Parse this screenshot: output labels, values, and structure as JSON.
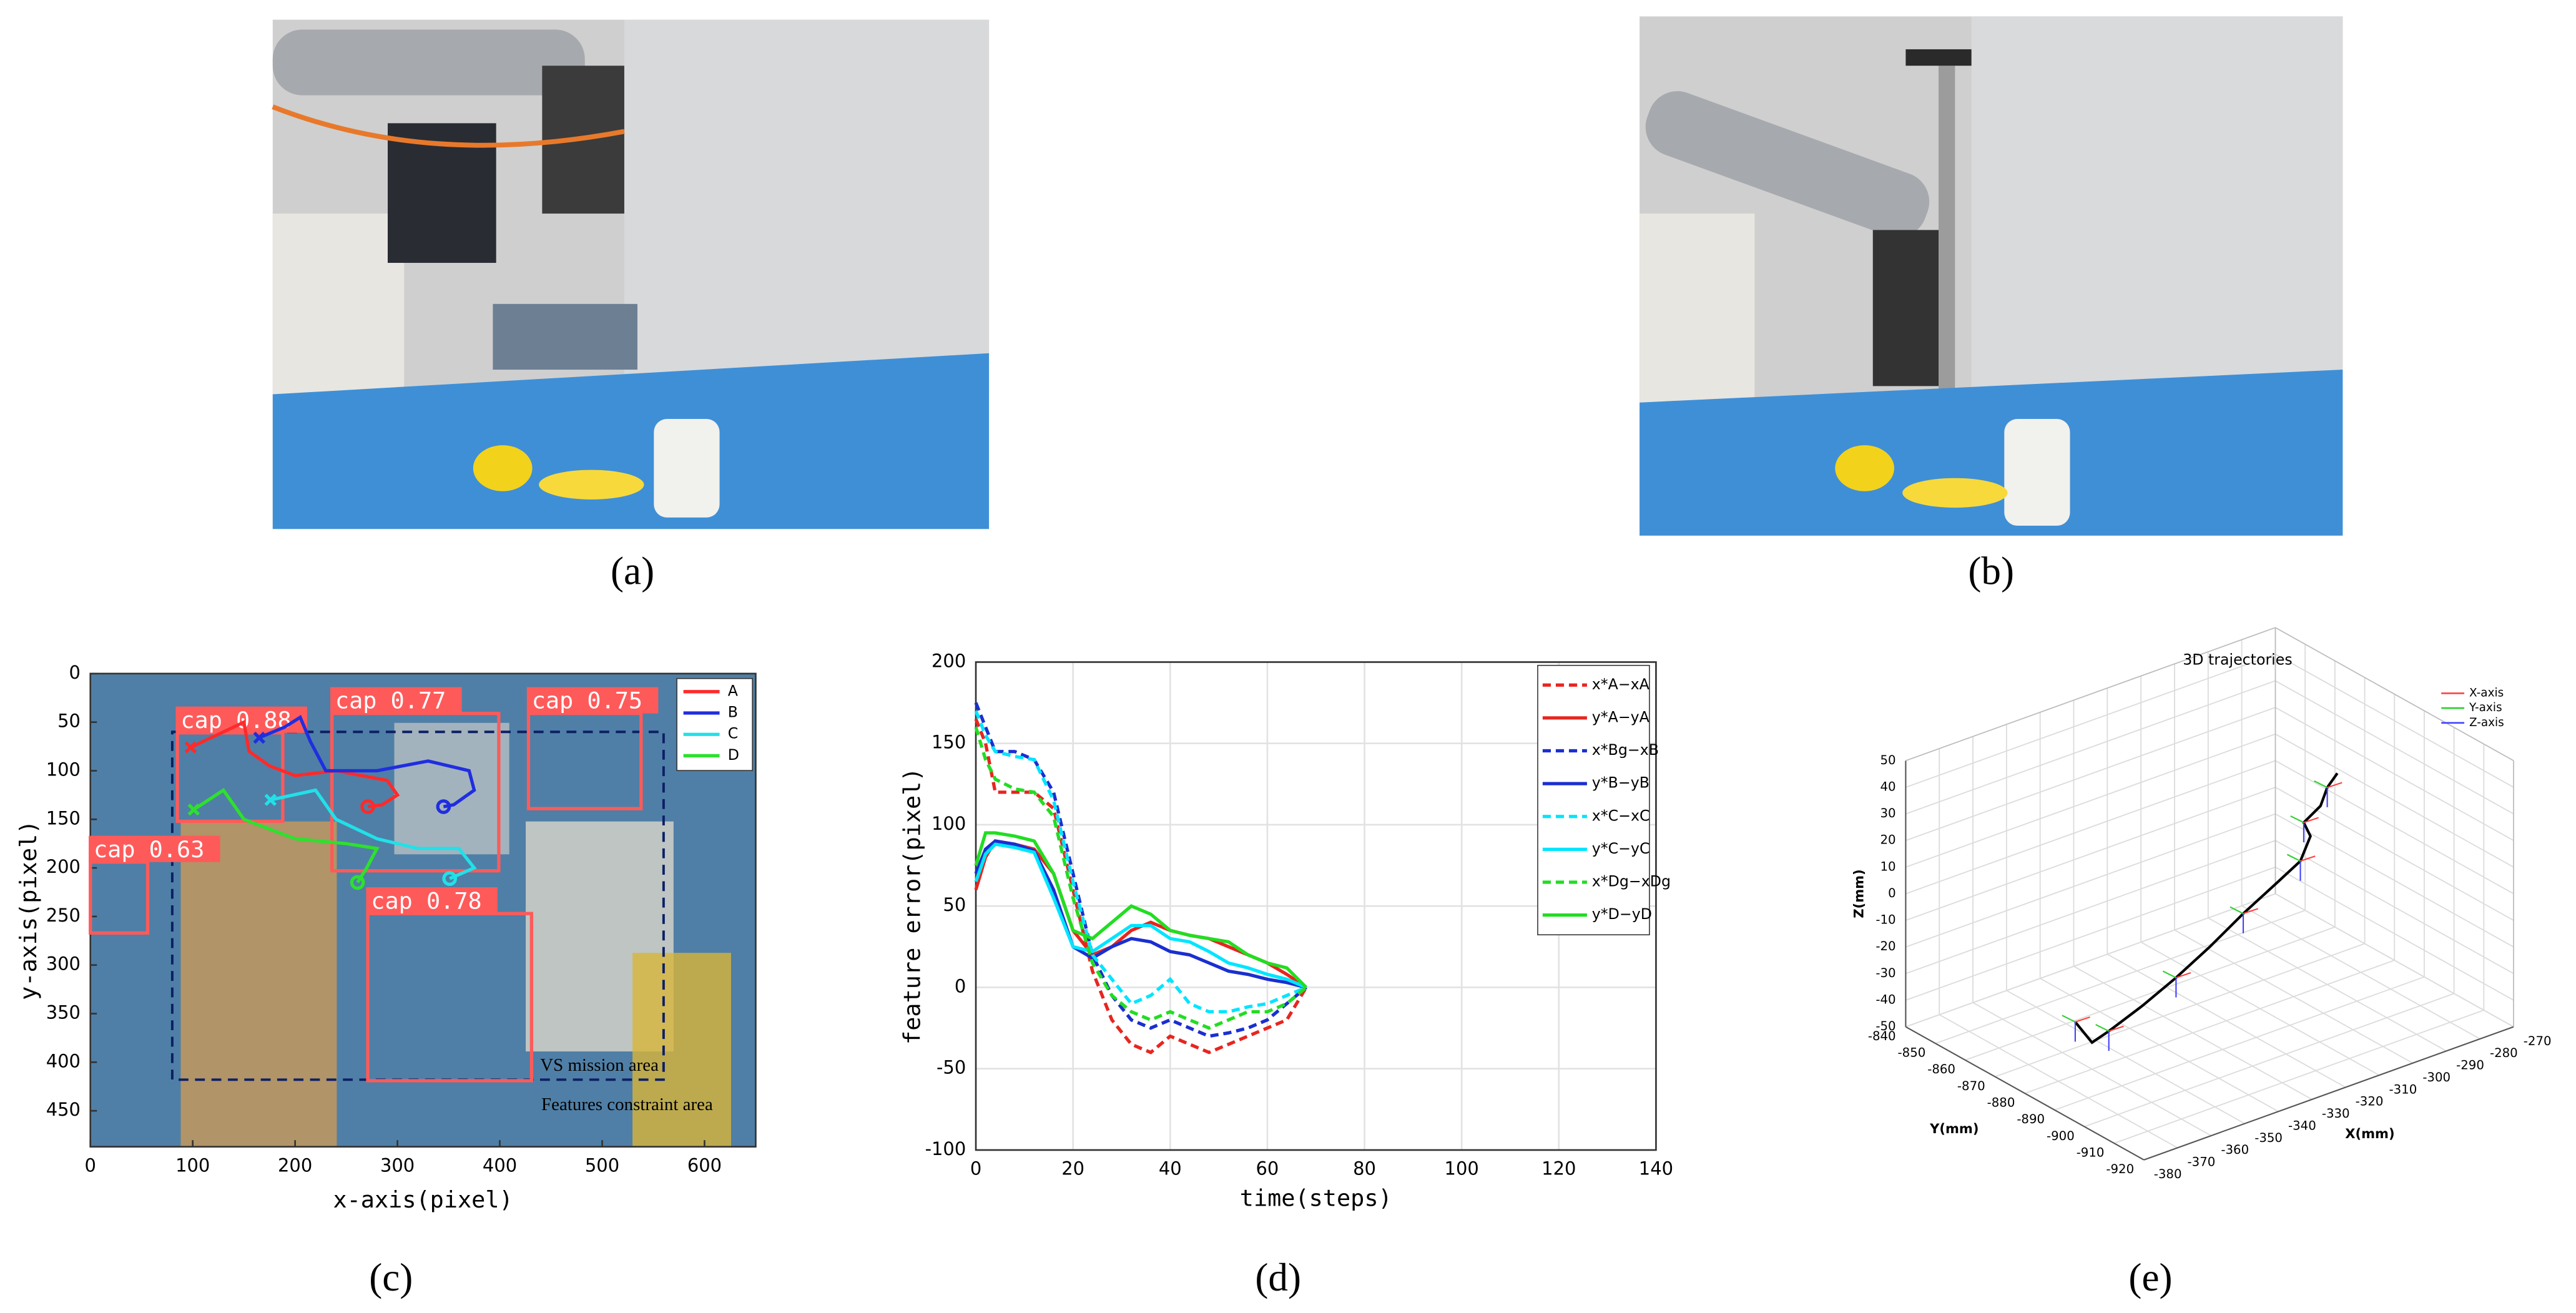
{
  "panel_labels": [
    "(a)",
    "(b)",
    "(c)",
    "(d)",
    "(e)"
  ],
  "chart_data": [
    {
      "type": "image_trajectory",
      "xlabel": "x-axis(pixel)",
      "ylabel": "y-axis(pixel)",
      "xlim": [
        0,
        650
      ],
      "ylim": [
        487,
        0
      ],
      "xticks": [
        0,
        100,
        200,
        300,
        400,
        500,
        600
      ],
      "yticks": [
        0,
        50,
        100,
        150,
        200,
        250,
        300,
        350,
        400,
        450
      ],
      "legend": "upper right",
      "series": [
        {
          "name": "A",
          "color": "#ff2a2a",
          "x": [
            98,
            130,
            150,
            155,
            175,
            200,
            240,
            290,
            300,
            285,
            271
          ],
          "y": [
            76,
            60,
            50,
            80,
            95,
            105,
            100,
            110,
            125,
            135,
            137
          ]
        },
        {
          "name": "B",
          "color": "#1f2ee0",
          "x": [
            165,
            190,
            205,
            215,
            230,
            280,
            330,
            370,
            375,
            355,
            345
          ],
          "y": [
            66,
            55,
            45,
            70,
            100,
            100,
            90,
            100,
            120,
            135,
            137
          ]
        },
        {
          "name": "C",
          "color": "#22e0e8",
          "x": [
            176,
            220,
            240,
            280,
            320,
            360,
            375,
            351
          ],
          "y": [
            130,
            120,
            150,
            170,
            180,
            180,
            200,
            211
          ]
        },
        {
          "name": "D",
          "color": "#2ee02e",
          "x": [
            101,
            130,
            150,
            200,
            250,
            280,
            270,
            261
          ],
          "y": [
            140,
            120,
            150,
            170,
            175,
            180,
            200,
            215
          ]
        }
      ],
      "detections": [
        {
          "label": "cap 0.88",
          "x": [
            85,
            188
          ],
          "y": [
            61,
            152
          ]
        },
        {
          "label": "cap 0.77",
          "x": [
            236,
            399
          ],
          "y": [
            41,
            203
          ]
        },
        {
          "label": "cap 0.75",
          "x": [
            428,
            538
          ],
          "y": [
            41,
            139
          ]
        },
        {
          "label": "cap 0.63",
          "x": [
            0,
            56
          ],
          "y": [
            194,
            267
          ]
        },
        {
          "label": "cap 0.78",
          "x": [
            271,
            431
          ],
          "y": [
            247,
            419
          ]
        }
      ],
      "mission_area": {
        "label": "VS mission area",
        "x": [
          80,
          560
        ],
        "y": [
          60,
          418
        ]
      },
      "annotation": "Features constraint area"
    },
    {
      "type": "line",
      "xlabel": "time(steps)",
      "ylabel": "feature error(pixel)",
      "x": [
        0,
        2,
        4,
        8,
        12,
        16,
        20,
        24,
        28,
        32,
        36,
        40,
        44,
        48,
        52,
        56,
        60,
        64,
        68
      ],
      "xlim": [
        0,
        140
      ],
      "ylim": [
        -100,
        200
      ],
      "xticks": [
        0,
        20,
        40,
        60,
        80,
        100,
        120,
        140
      ],
      "yticks": [
        -100,
        -50,
        0,
        50,
        100,
        150,
        200
      ],
      "grid": true,
      "legend": "upper right",
      "series": [
        {
          "name": "x*A−xA",
          "color": "#e8251f",
          "style": "dashed",
          "values": [
            165,
            150,
            120,
            120,
            120,
            110,
            60,
            10,
            -20,
            -35,
            -40,
            -30,
            -35,
            -40,
            -35,
            -30,
            -25,
            -20,
            0
          ]
        },
        {
          "name": "y*A−yA",
          "color": "#e8251f",
          "style": "solid",
          "values": [
            60,
            80,
            90,
            88,
            85,
            70,
            35,
            20,
            25,
            35,
            40,
            35,
            32,
            30,
            25,
            20,
            15,
            8,
            0
          ]
        },
        {
          "name": "x*Bg−xB",
          "color": "#1a2fd0",
          "style": "dashed",
          "values": [
            175,
            160,
            145,
            145,
            140,
            120,
            70,
            20,
            -5,
            -20,
            -25,
            -20,
            -25,
            -30,
            -28,
            -25,
            -20,
            -10,
            0
          ]
        },
        {
          "name": "y*B−yB",
          "color": "#1a2fd0",
          "style": "solid",
          "values": [
            70,
            85,
            90,
            88,
            84,
            60,
            25,
            18,
            25,
            30,
            28,
            22,
            20,
            15,
            10,
            8,
            5,
            3,
            0
          ]
        },
        {
          "name": "x*C−xC",
          "color": "#00e5ff",
          "style": "dashed",
          "values": [
            170,
            155,
            145,
            142,
            140,
            115,
            65,
            20,
            5,
            -10,
            -5,
            5,
            -10,
            -15,
            -15,
            -12,
            -10,
            -5,
            0
          ]
        },
        {
          "name": "y*C−yC",
          "color": "#00e5ff",
          "style": "solid",
          "values": [
            65,
            82,
            88,
            86,
            83,
            55,
            25,
            22,
            30,
            38,
            38,
            30,
            28,
            22,
            15,
            12,
            8,
            5,
            0
          ]
        },
        {
          "name": "x*Dg−xDg",
          "color": "#22dd22",
          "style": "dashed",
          "values": [
            160,
            140,
            128,
            122,
            120,
            105,
            55,
            15,
            -5,
            -15,
            -20,
            -15,
            -20,
            -25,
            -20,
            -15,
            -15,
            -10,
            0
          ]
        },
        {
          "name": "y*D−yD",
          "color": "#22dd22",
          "style": "solid",
          "values": [
            75,
            95,
            95,
            93,
            90,
            70,
            35,
            30,
            40,
            50,
            45,
            35,
            32,
            30,
            28,
            20,
            15,
            12,
            0
          ]
        }
      ]
    },
    {
      "type": "line3d",
      "title": "3D trajectories",
      "xlabel": "X(mm)",
      "ylabel": "Y(mm)",
      "zlabel": "Z(mm)",
      "xlim": [
        -380,
        -270
      ],
      "ylim": [
        -920,
        -840
      ],
      "zlim": [
        -50,
        50
      ],
      "xticks": [
        -380,
        -370,
        -360,
        -350,
        -340,
        -330,
        -320,
        -310,
        -300,
        -290,
        -280,
        -270
      ],
      "yticks": [
        -920,
        -910,
        -900,
        -890,
        -880,
        -870,
        -860,
        -850,
        -840
      ],
      "zticks": [
        -50,
        -40,
        -30,
        -20,
        -10,
        0,
        10,
        20,
        30,
        40,
        50
      ],
      "grid": true,
      "legend": "upper right",
      "series": [
        {
          "name": "X-axis",
          "color": "#ff4040"
        },
        {
          "name": "Y-axis",
          "color": "#30d030"
        },
        {
          "name": "Z-axis",
          "color": "#4040ff"
        }
      ],
      "trajectory": {
        "color": "#000000",
        "x": [
          -365,
          -360,
          -355,
          -345,
          -335,
          -325,
          -315,
          -305,
          -298,
          -295,
          -297,
          -292,
          -290,
          -287
        ],
        "y": [
          -880,
          -880,
          -880,
          -880,
          -880,
          -880,
          -880,
          -880,
          -880,
          -880,
          -880,
          -880,
          -880,
          -880
        ],
        "z": [
          -30,
          -40,
          -38,
          -33,
          -27,
          -20,
          -12,
          -5,
          0,
          8,
          14,
          18,
          24,
          28
        ]
      }
    }
  ]
}
